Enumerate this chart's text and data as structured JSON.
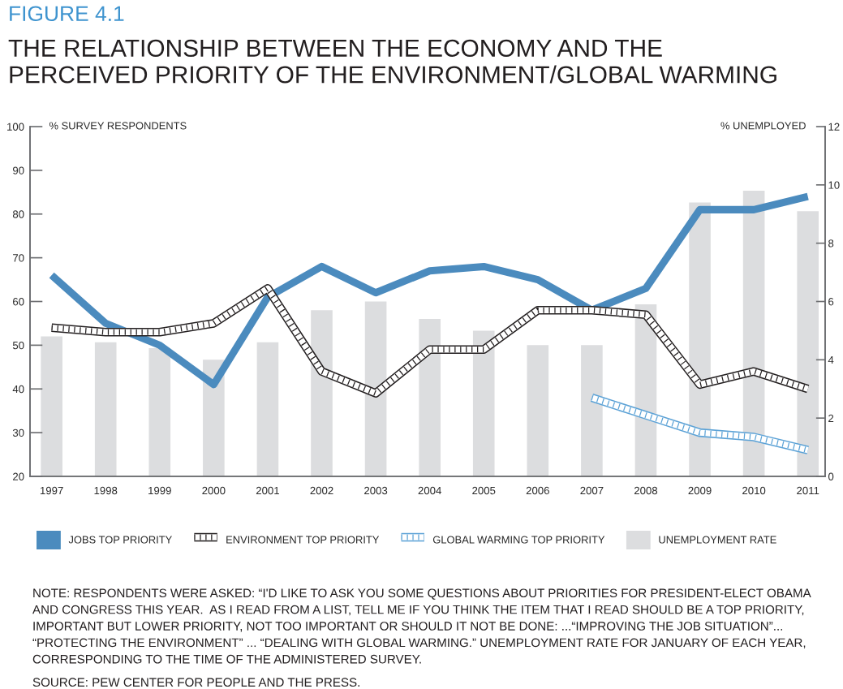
{
  "chart_data": {
    "type": "line",
    "title": "FIGURE 4.1",
    "subtitle": "THE RELATIONSHIP BETWEEN THE ECONOMY AND THE\nPERCEIVED PRIORITY OF THE ENVIRONMENT/GLOBAL WARMING",
    "ylabel": "% SURVEY RESPONDENTS",
    "y2label": "% UNEMPLOYED",
    "categories": [
      "1997",
      "1998",
      "1999",
      "2000",
      "2001",
      "2002",
      "2003",
      "2004",
      "2005",
      "2006",
      "2007",
      "2008",
      "2009",
      "2010",
      "2011"
    ],
    "series": [
      {
        "name": "JOBS TOP PRIORITY",
        "color": "#4b8bbe",
        "values": [
          66,
          55,
          50,
          41,
          61,
          68,
          62,
          67,
          68,
          65,
          58,
          63,
          81,
          81,
          84
        ]
      },
      {
        "name": "ENVIRONMENT TOP PRIORITY",
        "color": "#231f20",
        "values": [
          54,
          53,
          53,
          55,
          63,
          44,
          39,
          49,
          49,
          58,
          58,
          57,
          41,
          44,
          40
        ]
      },
      {
        "name": "GLOBAL WARMING TOP PRIORITY",
        "color": "#5ca2d6",
        "values": [
          null,
          null,
          null,
          null,
          null,
          null,
          null,
          null,
          null,
          null,
          38,
          34,
          30,
          29,
          26
        ]
      },
      {
        "name": "UNEMPLOYMENT RATE",
        "type": "bar",
        "axis": "y2",
        "color": "#dcdddf",
        "values": [
          4.8,
          4.6,
          4.4,
          4.0,
          4.6,
          5.7,
          6.0,
          5.4,
          5.0,
          4.5,
          4.5,
          5.9,
          9.4,
          9.8,
          9.1
        ]
      }
    ],
    "ylim": [
      20,
      100
    ],
    "yticks": [
      20,
      30,
      40,
      50,
      60,
      70,
      80,
      90,
      100
    ],
    "y2lim": [
      0,
      12
    ],
    "y2ticks": [
      0,
      2,
      4,
      6,
      8,
      10,
      12
    ],
    "legend": "bottom",
    "annotations": [
      "NOTE: RESPONDENTS WERE ASKED: “I'D LIKE TO ASK YOU SOME QUESTIONS ABOUT PRIORITIES FOR PRESIDENT-ELECT OBAMA\nAND CONGRESS THIS YEAR.  AS I READ FROM A LIST, TELL ME IF YOU THINK THE ITEM THAT I READ SHOULD BE A TOP PRIORITY,\nIMPORTANT BUT LOWER PRIORITY, NOT TOO IMPORTANT OR SHOULD IT NOT BE DONE: ...“IMPROVING THE JOB SITUATION”...\n“PROTECTING THE ENVIRONMENT” ... “DEALING WITH GLOBAL WARMING.” UNEMPLOYMENT RATE FOR JANUARY OF EACH YEAR,\nCORRESPONDING TO THE TIME OF THE ADMINISTERED SURVEY.",
      "SOURCE: PEW CENTER FOR PEOPLE AND THE PRESS."
    ]
  }
}
